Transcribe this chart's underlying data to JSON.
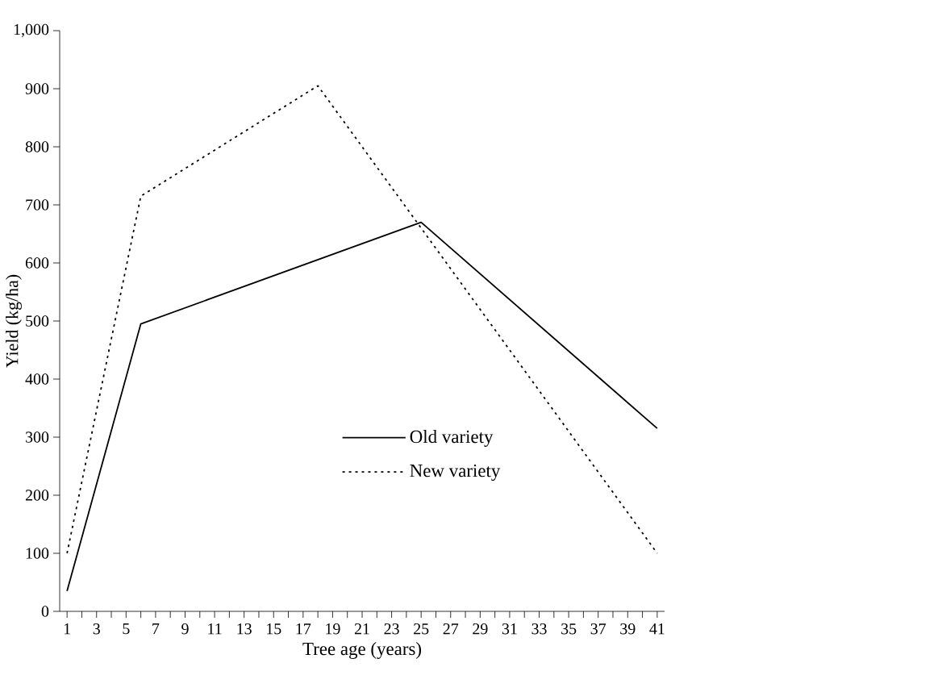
{
  "chart_data": {
    "type": "line",
    "xlabel": "Tree age (years)",
    "ylabel": "Yield (kg/ha)",
    "xlim": [
      0.5,
      41.5
    ],
    "ylim": [
      0,
      1000
    ],
    "xticks": [
      1,
      {
        "value": 2,
        "label": null
      },
      3,
      {
        "value": 4,
        "label": null
      },
      5,
      {
        "value": 6,
        "label": null
      },
      7,
      {
        "value": 8,
        "label": null
      },
      9,
      {
        "value": 10,
        "label": null
      },
      11,
      {
        "value": 12,
        "label": null
      },
      13,
      {
        "value": 14,
        "label": null
      },
      15,
      {
        "value": 16,
        "label": null
      },
      17,
      {
        "value": 18,
        "label": null
      },
      19,
      {
        "value": 20,
        "label": null
      },
      21,
      {
        "value": 22,
        "label": null
      },
      23,
      {
        "value": 24,
        "label": null
      },
      25,
      {
        "value": 26,
        "label": null
      },
      27,
      {
        "value": 28,
        "label": null
      },
      29,
      {
        "value": 30,
        "label": null
      },
      31,
      {
        "value": 32,
        "label": null
      },
      33,
      {
        "value": 34,
        "label": null
      },
      35,
      {
        "value": 36,
        "label": null
      },
      37,
      {
        "value": 38,
        "label": null
      },
      39,
      {
        "value": 40,
        "label": null
      },
      41
    ],
    "yticks": [
      0,
      100,
      200,
      300,
      400,
      500,
      600,
      700,
      800,
      900,
      {
        "value": 1000,
        "label": "1,000"
      }
    ],
    "grid": false,
    "legend": "bottom",
    "marker": "none",
    "series": [
      {
        "name": "Old variety",
        "color": "#000000",
        "line_style": "solid",
        "x": [
          1,
          6,
          25,
          41
        ],
        "values": [
          35,
          495,
          670,
          315
        ]
      },
      {
        "name": "New variety",
        "color": "#000000",
        "line_style": "dotted",
        "x": [
          1,
          6,
          18,
          41
        ],
        "values": [
          100,
          715,
          905,
          100
        ]
      }
    ]
  }
}
